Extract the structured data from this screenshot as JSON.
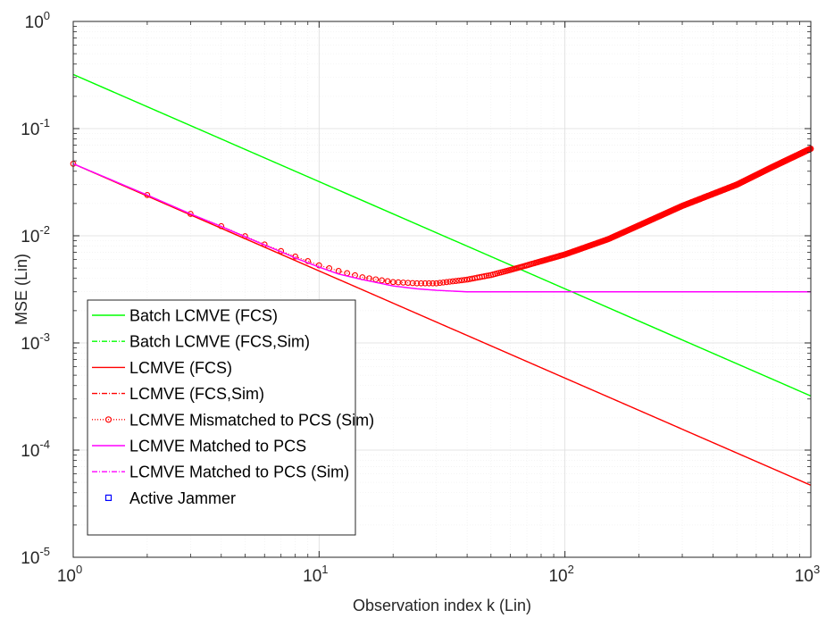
{
  "chart_data": {
    "type": "line",
    "title": "",
    "xlabel": "Observation index k (Lin)",
    "ylabel": "MSE (Lin)",
    "xscale": "log",
    "yscale": "log",
    "xlim": [
      1,
      1000
    ],
    "ylim": [
      1e-05,
      1
    ],
    "x_ticks": [
      {
        "base": "10",
        "exp": "0",
        "value": 1
      },
      {
        "base": "10",
        "exp": "1",
        "value": 10
      },
      {
        "base": "10",
        "exp": "2",
        "value": 100
      },
      {
        "base": "10",
        "exp": "3",
        "value": 1000
      }
    ],
    "y_ticks": [
      {
        "base": "10",
        "exp": "0",
        "value": 1
      },
      {
        "base": "10",
        "exp": "-1",
        "value": 0.1
      },
      {
        "base": "10",
        "exp": "-2",
        "value": 0.01
      },
      {
        "base": "10",
        "exp": "-3",
        "value": 0.001
      },
      {
        "base": "10",
        "exp": "-4",
        "value": 0.0001
      },
      {
        "base": "10",
        "exp": "-5",
        "value": 1e-05
      }
    ],
    "grid": true,
    "minor_grid": true,
    "legend_position": "lower-left",
    "series": [
      {
        "name": "Batch LCMVE (FCS)",
        "color": "#00ff00",
        "style": "solid",
        "marker": "none",
        "x": [
          1,
          10,
          100,
          1000
        ],
        "y": [
          0.32,
          0.032,
          0.0032,
          0.00032
        ]
      },
      {
        "name": "Batch LCMVE (FCS,Sim)",
        "color": "#00ff00",
        "style": "dashdot",
        "marker": "none",
        "x": [
          1,
          10,
          100,
          1000
        ],
        "y": [
          0.32,
          0.032,
          0.0032,
          0.00032
        ]
      },
      {
        "name": "LCMVE (FCS)",
        "color": "#ff0000",
        "style": "solid",
        "marker": "none",
        "x": [
          1,
          10,
          100,
          1000
        ],
        "y": [
          0.047,
          0.0047,
          0.00047,
          4.7e-05
        ]
      },
      {
        "name": "LCMVE (FCS,Sim)",
        "color": "#ff0000",
        "style": "dashdot",
        "marker": "none",
        "x": [
          1,
          10,
          100,
          1000
        ],
        "y": [
          0.047,
          0.0047,
          0.00047,
          4.7e-05
        ]
      },
      {
        "name": "LCMVE Mismatched to PCS (Sim)",
        "color": "#ff0000",
        "style": "dotted",
        "marker": "circle",
        "x": [
          1,
          2,
          3,
          4,
          5,
          6,
          7,
          8,
          9,
          10,
          12,
          15,
          20,
          25,
          30,
          40,
          50,
          60,
          70,
          100,
          150,
          200,
          300,
          500,
          700,
          1000
        ],
        "y": [
          0.047,
          0.024,
          0.016,
          0.0123,
          0.0099,
          0.0083,
          0.0072,
          0.0064,
          0.0058,
          0.0053,
          0.0047,
          0.0041,
          0.0037,
          0.0036,
          0.0036,
          0.0039,
          0.0043,
          0.0048,
          0.0053,
          0.0067,
          0.0093,
          0.0125,
          0.019,
          0.03,
          0.044,
          0.065
        ]
      },
      {
        "name": "LCMVE Matched to PCS",
        "color": "#ff00ff",
        "style": "solid",
        "marker": "none",
        "x": [
          1,
          2,
          3,
          4,
          5,
          6,
          7,
          8,
          9,
          10,
          12,
          15,
          20,
          25,
          30,
          40,
          50,
          70,
          100,
          200,
          500,
          1000
        ],
        "y": [
          0.047,
          0.024,
          0.016,
          0.0122,
          0.0098,
          0.0082,
          0.0071,
          0.0062,
          0.0056,
          0.0051,
          0.0044,
          0.0039,
          0.0034,
          0.0032,
          0.0031,
          0.003,
          0.003,
          0.003,
          0.003,
          0.003,
          0.003,
          0.003
        ]
      },
      {
        "name": "LCMVE Matched to PCS (Sim)",
        "color": "#ff00ff",
        "style": "dashdot",
        "marker": "none",
        "x": [
          1,
          2,
          3,
          4,
          5,
          6,
          7,
          8,
          9,
          10,
          12,
          15,
          20,
          25,
          30,
          40,
          50,
          70,
          100,
          200,
          500,
          1000
        ],
        "y": [
          0.047,
          0.024,
          0.016,
          0.0122,
          0.0098,
          0.0082,
          0.0071,
          0.0062,
          0.0056,
          0.0051,
          0.0044,
          0.0039,
          0.0034,
          0.0032,
          0.0031,
          0.003,
          0.003,
          0.003,
          0.003,
          0.003,
          0.003,
          0.003
        ]
      },
      {
        "name": "Active Jammer",
        "color": "#0000ff",
        "style": "none",
        "marker": "square",
        "x": [],
        "y": []
      }
    ]
  }
}
